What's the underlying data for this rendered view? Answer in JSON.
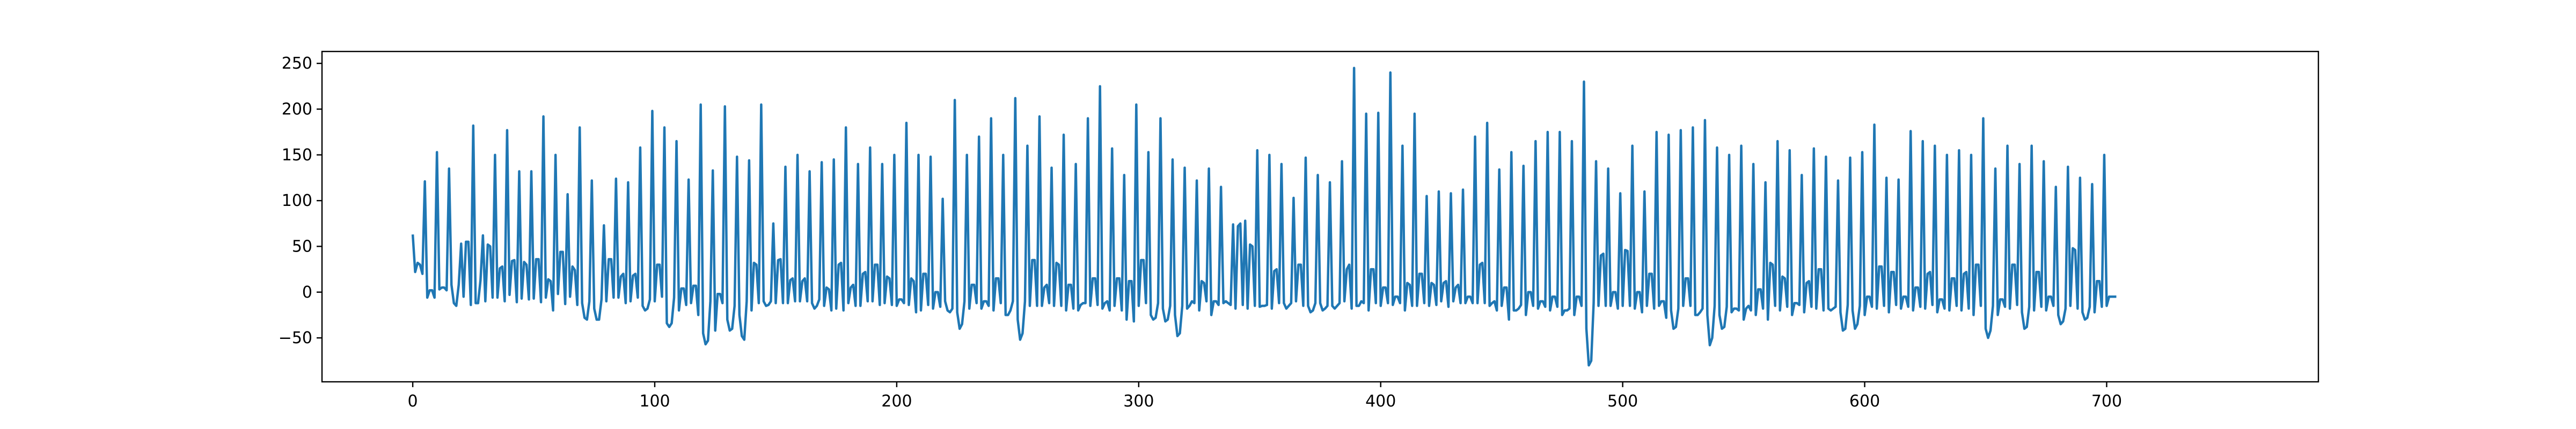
{
  "chart_data": {
    "type": "line",
    "title": "",
    "xlabel": "",
    "ylabel": "",
    "xlim": [
      -37.5,
      787.5
    ],
    "ylim": [
      -98,
      263
    ],
    "x_ticks": [
      0,
      100,
      200,
      300,
      400,
      500,
      600,
      700
    ],
    "y_ticks": [
      -50,
      0,
      50,
      100,
      150,
      200,
      250
    ],
    "grid": false,
    "legend": "none",
    "x_start": 0,
    "x_step": 1,
    "series": [
      {
        "color": "#1f77b4",
        "values": [
          63,
          22,
          32,
          30,
          20,
          121,
          -6,
          2,
          2,
          -6,
          153,
          3,
          5,
          5,
          2,
          135,
          8,
          -12,
          -15,
          8,
          53,
          -5,
          55,
          55,
          -14,
          182,
          -12,
          -12,
          13,
          62,
          -10,
          52,
          50,
          -6,
          150,
          -6,
          26,
          28,
          -10,
          177,
          -3,
          34,
          35,
          -11,
          132,
          -7,
          33,
          30,
          -8,
          132,
          -7,
          36,
          36,
          -11,
          192,
          -6,
          14,
          12,
          -20,
          150,
          -2,
          44,
          44,
          -13,
          107,
          -5,
          28,
          24,
          -14,
          180,
          -12,
          -28,
          -30,
          -10,
          122,
          -18,
          -30,
          -30,
          -8,
          73,
          -10,
          36,
          36,
          -6,
          124,
          -6,
          17,
          20,
          -12,
          120,
          -10,
          18,
          20,
          -6,
          158,
          -15,
          -20,
          -18,
          -8,
          198,
          -10,
          30,
          30,
          -5,
          180,
          -34,
          -38,
          -34,
          -6,
          165,
          -20,
          4,
          4,
          -14,
          123,
          -12,
          7,
          7,
          -25,
          205,
          -45,
          -57,
          -53,
          -10,
          133,
          -42,
          -2,
          -2,
          -12,
          203,
          -30,
          -42,
          -40,
          -15,
          148,
          -25,
          -48,
          -52,
          -10,
          144,
          -20,
          32,
          30,
          -12,
          205,
          -10,
          -15,
          -14,
          -10,
          75,
          -12,
          35,
          36,
          -12,
          137,
          -12,
          13,
          15,
          -10,
          150,
          -10,
          12,
          15,
          -10,
          132,
          -12,
          -18,
          -15,
          -8,
          142,
          -15,
          5,
          3,
          -20,
          145,
          -18,
          30,
          32,
          -20,
          180,
          -12,
          5,
          8,
          -15,
          140,
          -15,
          20,
          22,
          -10,
          158,
          -10,
          30,
          30,
          -14,
          140,
          -12,
          17,
          15,
          -14,
          150,
          -15,
          -8,
          -8,
          -12,
          185,
          -14,
          15,
          12,
          -22,
          150,
          -20,
          20,
          20,
          -14,
          148,
          -18,
          0,
          0,
          -16,
          102,
          -10,
          -20,
          -22,
          -18,
          210,
          -22,
          -40,
          -35,
          -10,
          150,
          -18,
          8,
          8,
          -12,
          170,
          -18,
          -10,
          -10,
          -15,
          190,
          -20,
          15,
          15,
          -12,
          150,
          -25,
          -25,
          -20,
          -10,
          212,
          -30,
          -52,
          -45,
          -10,
          160,
          -15,
          35,
          35,
          -15,
          192,
          -15,
          5,
          8,
          -12,
          136,
          -15,
          32,
          30,
          -15,
          172,
          -20,
          8,
          8,
          -18,
          140,
          -20,
          -14,
          -12,
          -12,
          190,
          -15,
          15,
          15,
          -14,
          225,
          -18,
          -12,
          -10,
          -20,
          157,
          -15,
          15,
          15,
          -20,
          128,
          -30,
          12,
          12,
          -32,
          205,
          -15,
          35,
          35,
          -12,
          153,
          -25,
          -30,
          -28,
          -12,
          190,
          -18,
          -32,
          -30,
          -15,
          145,
          -25,
          -48,
          -45,
          -15,
          136,
          -18,
          -15,
          -10,
          -12,
          122,
          -20,
          12,
          10,
          -10,
          135,
          -25,
          -10,
          -10,
          -14,
          115,
          -12,
          -10,
          -12,
          -14,
          74,
          -18,
          72,
          75,
          -14,
          78,
          -18,
          52,
          50,
          -15,
          155,
          -16,
          -15,
          -15,
          -14,
          150,
          -18,
          23,
          25,
          -12,
          140,
          -12,
          -18,
          -15,
          -12,
          103,
          -10,
          30,
          30,
          -15,
          147,
          -15,
          -22,
          -20,
          -12,
          128,
          -12,
          -20,
          -18,
          -15,
          120,
          -15,
          -18,
          -15,
          -12,
          143,
          -10,
          25,
          30,
          -18,
          245,
          -15,
          -15,
          -10,
          -12,
          195,
          -20,
          25,
          25,
          -12,
          196,
          -15,
          5,
          5,
          -12,
          240,
          -14,
          -5,
          -5,
          -12,
          160,
          -20,
          10,
          8,
          -15,
          195,
          -15,
          20,
          20,
          -12,
          105,
          -15,
          10,
          8,
          -14,
          110,
          -10,
          10,
          12,
          -16,
          108,
          -10,
          5,
          8,
          -12,
          112,
          -12,
          -5,
          -5,
          -12,
          170,
          -12,
          30,
          32,
          -12,
          185,
          -15,
          -12,
          -10,
          -20,
          134,
          -15,
          5,
          5,
          -30,
          153,
          -20,
          -20,
          -18,
          -14,
          138,
          -25,
          0,
          0,
          -15,
          165,
          -18,
          -10,
          -10,
          -16,
          175,
          -20,
          -5,
          -5,
          -16,
          175,
          -25,
          -20,
          -20,
          -18,
          165,
          -25,
          -5,
          -5,
          -15,
          230,
          -40,
          -80,
          -75,
          -12,
          143,
          -15,
          40,
          42,
          -15,
          135,
          -15,
          0,
          0,
          -18,
          108,
          -15,
          46,
          45,
          -15,
          160,
          -18,
          0,
          0,
          -22,
          110,
          -15,
          20,
          20,
          -18,
          175,
          -15,
          -10,
          -10,
          -28,
          172,
          -20,
          -40,
          -38,
          -18,
          177,
          -15,
          15,
          15,
          -15,
          180,
          -25,
          -25,
          -22,
          -18,
          188,
          -25,
          -58,
          -50,
          -15,
          158,
          -25,
          -40,
          -38,
          -16,
          150,
          -22,
          -18,
          -18,
          -20,
          160,
          -30,
          -18,
          -15,
          -20,
          140,
          -25,
          3,
          3,
          -18,
          120,
          -30,
          32,
          30,
          -15,
          165,
          -20,
          17,
          15,
          -16,
          155,
          -25,
          -12,
          -12,
          -14,
          128,
          -22,
          10,
          12,
          -16,
          157,
          -18,
          25,
          25,
          -20,
          148,
          -18,
          -20,
          -18,
          -16,
          122,
          -22,
          -42,
          -40,
          -14,
          147,
          -20,
          -40,
          -35,
          -15,
          153,
          -25,
          -5,
          -5,
          -16,
          183,
          -18,
          28,
          28,
          -15,
          125,
          -22,
          22,
          22,
          -14,
          123,
          -18,
          -5,
          -5,
          -16,
          176,
          -20,
          5,
          5,
          -16,
          165,
          -18,
          20,
          22,
          -14,
          160,
          -22,
          -8,
          -8,
          -18,
          150,
          -20,
          15,
          15,
          -15,
          155,
          -20,
          20,
          22,
          -18,
          150,
          -25,
          30,
          30,
          -15,
          190,
          -40,
          -50,
          -42,
          -15,
          135,
          -25,
          -8,
          -8,
          -16,
          160,
          -18,
          30,
          30,
          -14,
          140,
          -22,
          -40,
          -38,
          -16,
          160,
          -20,
          22,
          22,
          -16,
          143,
          -20,
          -5,
          -5,
          -15,
          115,
          -25,
          -35,
          -32,
          -18,
          137,
          -15,
          48,
          46,
          -18,
          125,
          -22,
          -30,
          -28,
          -16,
          118,
          -22,
          12,
          12,
          -16,
          150,
          -15,
          -5,
          -5,
          -5,
          -5
        ]
      }
    ]
  }
}
